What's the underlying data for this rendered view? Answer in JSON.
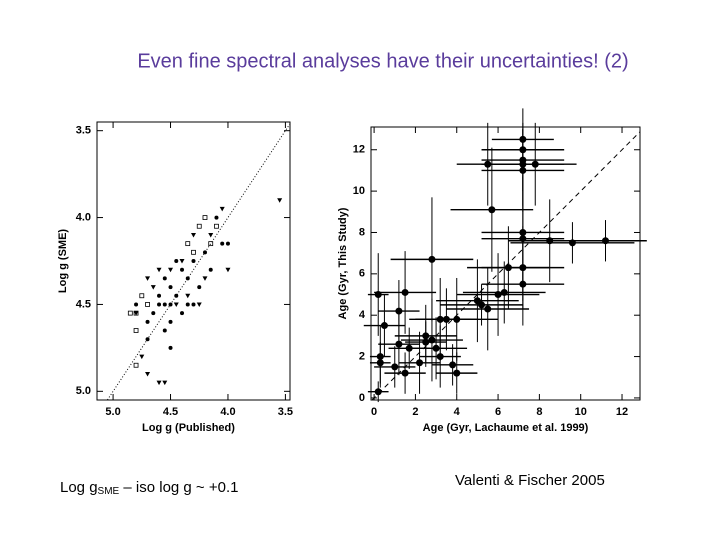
{
  "slide": {
    "title": "Even fine spectral analyses have their uncertainties!  (2)",
    "caption_left": {
      "text_before": "Log g",
      "subscript": "SME",
      "text_after": " – iso log g ~ +0.1"
    },
    "caption_right": "Valenti & Fischer 2005"
  },
  "chart_data": [
    {
      "type": "scatter",
      "x_label": "Log g (Published)",
      "y_label": "Log g (SME)",
      "xlim": [
        5.14,
        3.46
      ],
      "ylim": [
        5.05,
        3.45
      ],
      "xticks": [
        {
          "value": 5,
          "label": "5.0"
        },
        4.5,
        {
          "value": 4,
          "label": "4.0"
        },
        3.5
      ],
      "yticks": [
        3.5,
        {
          "value": 4,
          "label": "4.0"
        },
        4.5,
        {
          "value": 5,
          "label": "5.0"
        }
      ],
      "reference_line": "dotted",
      "series": [
        {
          "marker": "circle",
          "color": "#000000",
          "x": [
            4.5,
            4.45,
            4.6,
            4.55,
            4.4,
            4.3,
            4.2,
            4.35,
            4.65,
            4.7,
            4.5,
            4.4,
            4.25,
            4.15,
            4.1,
            4.05,
            4.6,
            4.55,
            4.5,
            4.7,
            4.45,
            4.35,
            4.3,
            4.55,
            4.8,
            4.5,
            4.0
          ],
          "y": [
            4.4,
            4.45,
            4.5,
            4.35,
            4.3,
            4.25,
            4.2,
            4.5,
            4.55,
            4.6,
            4.6,
            4.55,
            4.4,
            4.3,
            4.0,
            4.15,
            4.45,
            4.65,
            4.75,
            4.7,
            4.25,
            4.35,
            4.5,
            4.5,
            4.5,
            4.5,
            4.15
          ]
        },
        {
          "marker": "triangle",
          "color": "#000000",
          "x": [
            4.75,
            4.6,
            4.55,
            4.7,
            3.55,
            4.4,
            4.5,
            4.6,
            4.3,
            4.0,
            4.2,
            4.7,
            4.65,
            4.45,
            4.15,
            4.05,
            4.35,
            4.8,
            4.25
          ],
          "y": [
            4.8,
            4.95,
            4.95,
            4.9,
            3.9,
            4.25,
            4.3,
            4.3,
            4.1,
            4.3,
            4.35,
            4.35,
            4.4,
            4.5,
            4.1,
            3.95,
            4.45,
            4.55,
            4.5
          ]
        },
        {
          "marker": "square",
          "color": "#000000",
          "x": [
            4.8,
            4.8,
            4.75,
            4.85,
            4.3,
            4.2,
            4.1,
            4.25,
            4.35,
            4.15,
            4.8,
            4.7
          ],
          "y": [
            4.65,
            4.55,
            4.45,
            4.55,
            4.2,
            4.0,
            4.05,
            4.05,
            4.15,
            4.15,
            4.85,
            4.5
          ]
        }
      ]
    },
    {
      "type": "errorbar",
      "x_label": "Age (Gyr,  Lachaume et al. 1999)",
      "y_label": "Age (Gyr,  This Study)",
      "xlim": [
        -0.15,
        12.87
      ],
      "ylim": [
        -0.1,
        13.1
      ],
      "xticks": [
        0,
        2,
        4,
        6,
        8,
        10,
        12
      ],
      "yticks": [
        0,
        2,
        4,
        6,
        8,
        10,
        12
      ],
      "reference_line": "dashed",
      "series": [
        {
          "marker": "circle",
          "color": "#000000",
          "x": [
            7.2,
            7.2,
            7.2,
            7.2,
            5.5,
            7.8,
            7.2,
            5.7,
            7.2,
            7.2,
            8.5,
            9.6,
            11.2,
            2.8,
            7.2,
            6.5,
            7.2,
            6.0,
            6.3,
            5.0,
            5.2,
            5.5,
            1.5,
            0.2,
            1.2,
            3.5,
            3.2,
            4.0,
            0.5,
            2.5,
            1.2,
            2.5,
            3.0,
            1.7,
            3.2,
            0.3,
            0.3,
            1.5,
            2.2,
            3.8,
            4.0,
            2.8,
            1.0,
            0.2
          ],
          "y": [
            12.5,
            12.0,
            11.5,
            11.3,
            11.3,
            11.3,
            11.0,
            9.1,
            8.0,
            7.7,
            7.6,
            7.5,
            7.6,
            6.7,
            6.3,
            6.3,
            5.5,
            5.0,
            5.1,
            4.7,
            4.5,
            4.3,
            5.1,
            5.0,
            4.2,
            3.8,
            3.8,
            3.8,
            3.5,
            3.0,
            2.6,
            2.7,
            2.4,
            2.4,
            2.0,
            2.0,
            1.7,
            1.2,
            1.7,
            1.6,
            1.2,
            2.8,
            1.5,
            0.3
          ],
          "xerr": [
            1.5,
            2,
            2,
            2,
            1.5,
            2,
            2,
            2,
            2,
            2,
            2,
            3,
            2,
            2,
            2,
            2,
            2,
            2,
            2,
            2,
            2,
            2,
            1.5,
            0.5,
            1,
            1.5,
            1.5,
            2,
            1,
            1.5,
            1,
            1,
            1.5,
            1,
            1,
            0.5,
            0.5,
            1,
            1,
            1,
            1,
            1.5,
            1,
            0.5
          ],
          "yerr": [
            1.5,
            1,
            1.5,
            2,
            2,
            2,
            2,
            3,
            3,
            3,
            2,
            1,
            1,
            3,
            2,
            2,
            2,
            2,
            1.5,
            2,
            1,
            2,
            2,
            2,
            1.5,
            1.5,
            2,
            2,
            1.5,
            1.5,
            1.5,
            1,
            1.5,
            1,
            1.5,
            1.5,
            1,
            1,
            1.5,
            1,
            1,
            2,
            1,
            0.5
          ]
        }
      ]
    }
  ]
}
